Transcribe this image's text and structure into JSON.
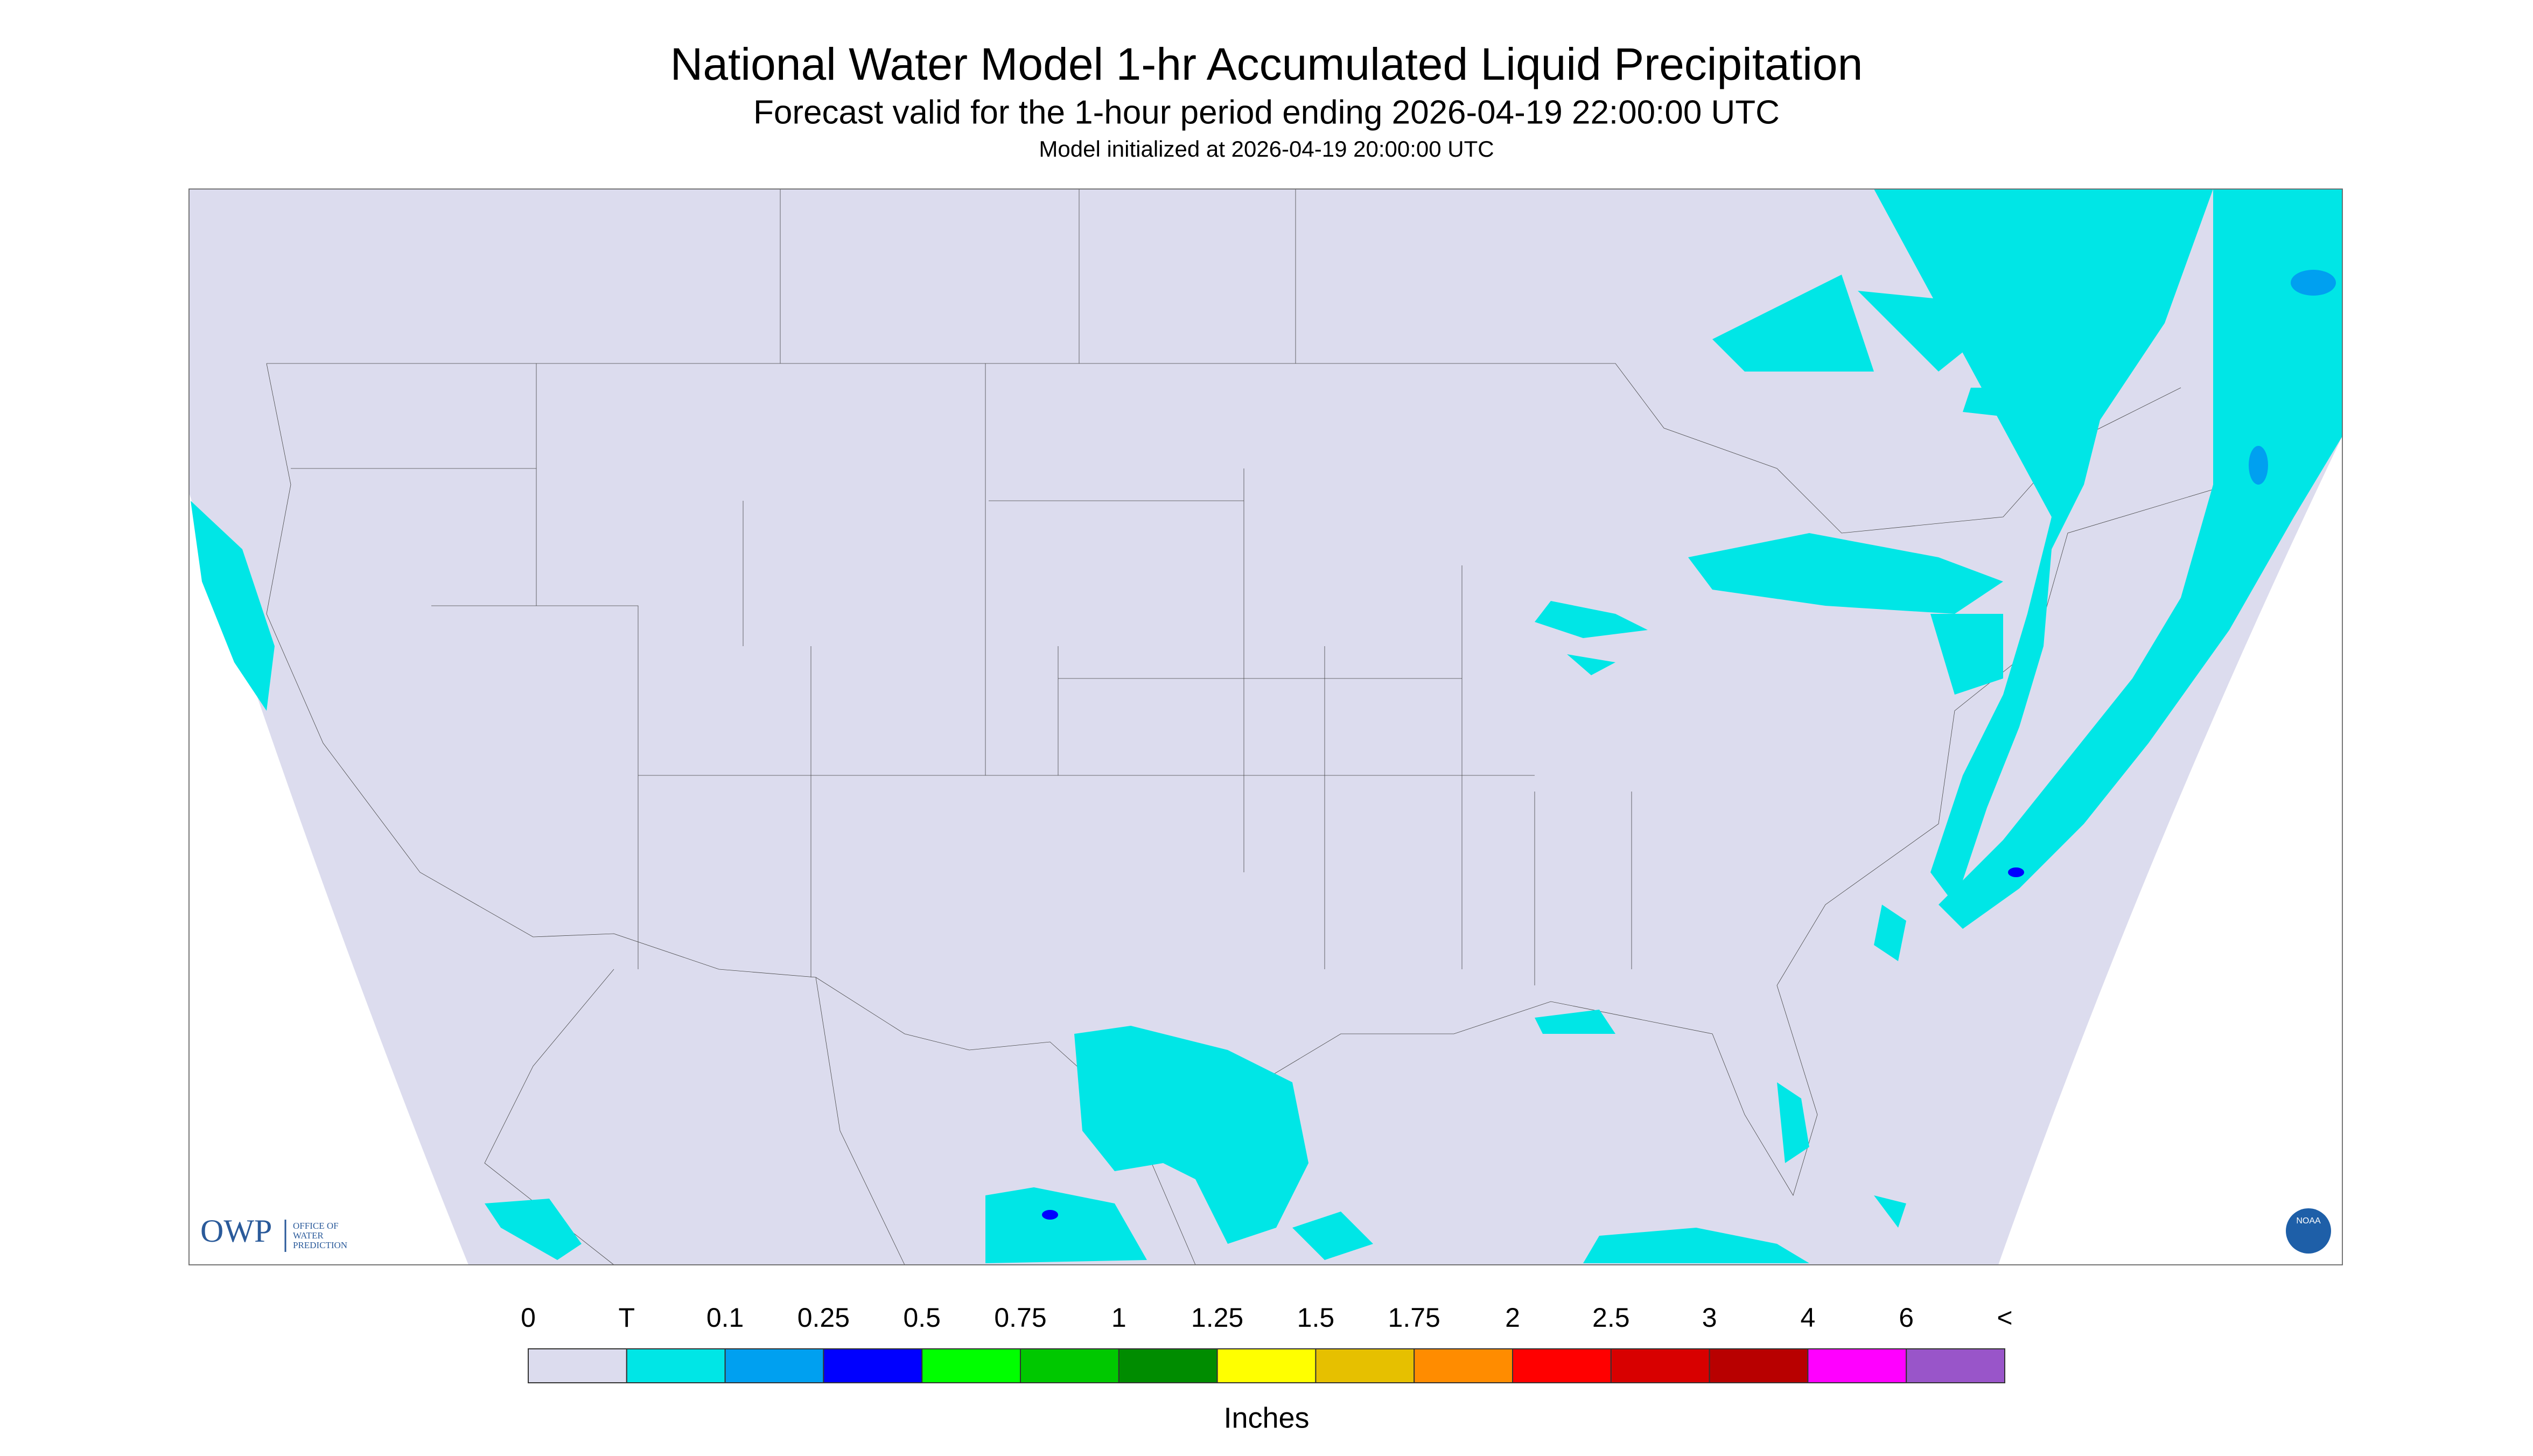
{
  "header": {
    "title": "National Water Model 1-hr Accumulated Liquid Precipitation",
    "subtitle": "Forecast valid for the 1-hour period ending 2026-04-19 22:00:00 UTC",
    "initialized": "Model initialized at 2026-04-19 20:00:00 UTC"
  },
  "logos": {
    "owp": "OWP",
    "owp_name": [
      "OFFICE OF",
      "WATER",
      "PREDICTION"
    ],
    "noaa": "NOAA"
  },
  "legend": {
    "labels": [
      "0",
      "T",
      "0.1",
      "0.25",
      "0.5",
      "0.75",
      "1",
      "1.25",
      "1.5",
      "1.75",
      "2",
      "2.5",
      "3",
      "4",
      "6",
      "<"
    ],
    "colors": [
      "#dcdcee",
      "#00e6e6",
      "#00a0f0",
      "#0000ff",
      "#00ff00",
      "#00c800",
      "#008c00",
      "#ffff00",
      "#e6c000",
      "#ff8c00",
      "#ff0000",
      "#d80000",
      "#b80000",
      "#ff00ff",
      "#9955c9"
    ],
    "units": "Inches"
  }
}
